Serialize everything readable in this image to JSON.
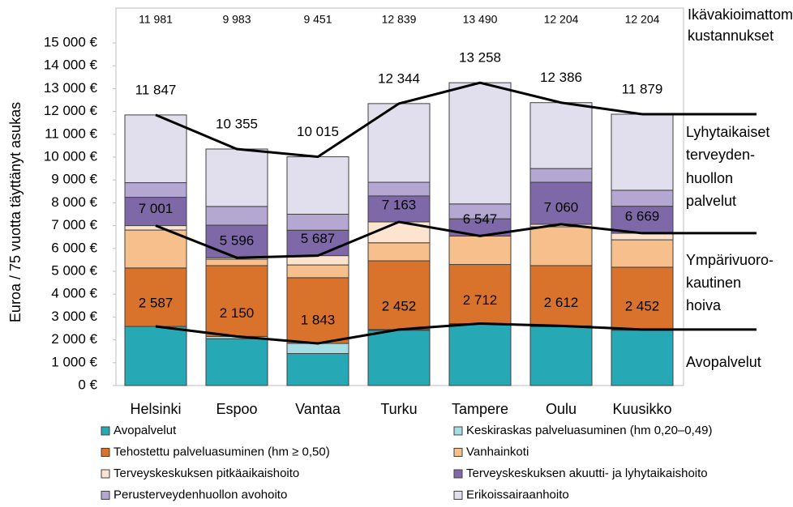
{
  "chart_data": {
    "type": "stacked_bar",
    "y_label": "Euroa / 75 vuotta täyttänyt asukas",
    "categories": [
      "Helsinki",
      "Espoo",
      "Vantaa",
      "Turku",
      "Tampere",
      "Oulu",
      "Kuusikko"
    ],
    "ylim": [
      0,
      15000
    ],
    "yticks": [
      {
        "value": 0,
        "label": "0 €"
      },
      {
        "value": 1000,
        "label": "1 000 €"
      },
      {
        "value": 2000,
        "label": "2 000 €"
      },
      {
        "value": 3000,
        "label": "3 000 €"
      },
      {
        "value": 4000,
        "label": "4 000 €"
      },
      {
        "value": 5000,
        "label": "5 000 €"
      },
      {
        "value": 6000,
        "label": "6 000 €"
      },
      {
        "value": 7000,
        "label": "7 000 €"
      },
      {
        "value": 8000,
        "label": "8 000 €"
      },
      {
        "value": 9000,
        "label": "9 000 €"
      },
      {
        "value": 10000,
        "label": "10 000 €"
      },
      {
        "value": 11000,
        "label": "11 000 €"
      },
      {
        "value": 12000,
        "label": "12 000 €"
      },
      {
        "value": 13000,
        "label": "13 000 €"
      },
      {
        "value": 14000,
        "label": "14 000 €"
      },
      {
        "value": 15000,
        "label": "15 000 €"
      }
    ],
    "series": [
      {
        "name": "Avopalvelut",
        "color": "#27a9b5",
        "values": [
          2587,
          2050,
          1400,
          2420,
          2680,
          2580,
          2420
        ]
      },
      {
        "name": "Keskiraskas palveluasuminen (hm 0,20–0,49)",
        "color": "#a6dce4",
        "values": [
          0,
          100,
          443,
          32,
          32,
          32,
          32
        ]
      },
      {
        "name": "Tehostettu palveluasuminen (hm ≥ 0,50)",
        "color": "#d9722b",
        "values": [
          2560,
          3100,
          2877,
          3008,
          2588,
          2638,
          2728
        ]
      },
      {
        "name": "Vanhainkoti",
        "color": "#f6bf8b",
        "values": [
          1660,
          280,
          560,
          790,
          1247,
          1700,
          1200
        ]
      },
      {
        "name": "Terveyskeskuksen pitkäaikaishoito",
        "color": "#fde4cf",
        "values": [
          194,
          66,
          407,
          913,
          0,
          110,
          289
        ]
      },
      {
        "name": "Terveyskeskuksen akuutti- ja lyhytaikaishoito",
        "color": "#7f68a8",
        "values": [
          1240,
          1424,
          1113,
          1137,
          753,
          1840,
          1181
        ]
      },
      {
        "name": "Perusterveydenhuollon avohoito",
        "color": "#b4a8d2",
        "values": [
          640,
          820,
          700,
          600,
          650,
          600,
          700
        ]
      },
      {
        "name": "Erikoissairaanhoito",
        "color": "#e1deed",
        "values": [
          2966,
          2515,
          2515,
          3444,
          5308,
          2886,
          3329
        ]
      }
    ],
    "lines": [
      {
        "name": [
          "Lyhytaikaiset",
          "terveyden-",
          "huollon",
          "palvelut"
        ],
        "color": "#000000",
        "values": [
          11847,
          10355,
          10015,
          12344,
          13258,
          12386,
          11879
        ],
        "value_labels": [
          "11 847",
          "10 355",
          "10 015",
          "12 344",
          "13 258",
          "12 386",
          "11 879"
        ]
      },
      {
        "name": [
          "Ympärivuoro-",
          "kautinen",
          "hoiva"
        ],
        "color": "#000000",
        "values": [
          7001,
          5596,
          5687,
          7163,
          6547,
          7060,
          6669
        ],
        "value_labels": [
          "7 001",
          "5 596",
          "5 687",
          "7 163",
          "6 547",
          "7 060",
          "6 669"
        ]
      },
      {
        "name": [
          "Avopalvelut"
        ],
        "color": "#000000",
        "values": [
          2587,
          2150,
          1843,
          2452,
          2712,
          2612,
          2452
        ],
        "value_labels": [
          "2 587",
          "2 150",
          "1 843",
          "2 452",
          "2 712",
          "2 612",
          "2 452"
        ]
      }
    ],
    "unadjusted": {
      "label": [
        "Ikävakioimattomat",
        "kustannukset"
      ],
      "values": [
        11981,
        9983,
        9451,
        12839,
        13490,
        12204,
        12204
      ],
      "value_labels": [
        "11 981",
        "9 983",
        "9 451",
        "12 839",
        "13 490",
        "12 204",
        "12 204"
      ]
    }
  }
}
